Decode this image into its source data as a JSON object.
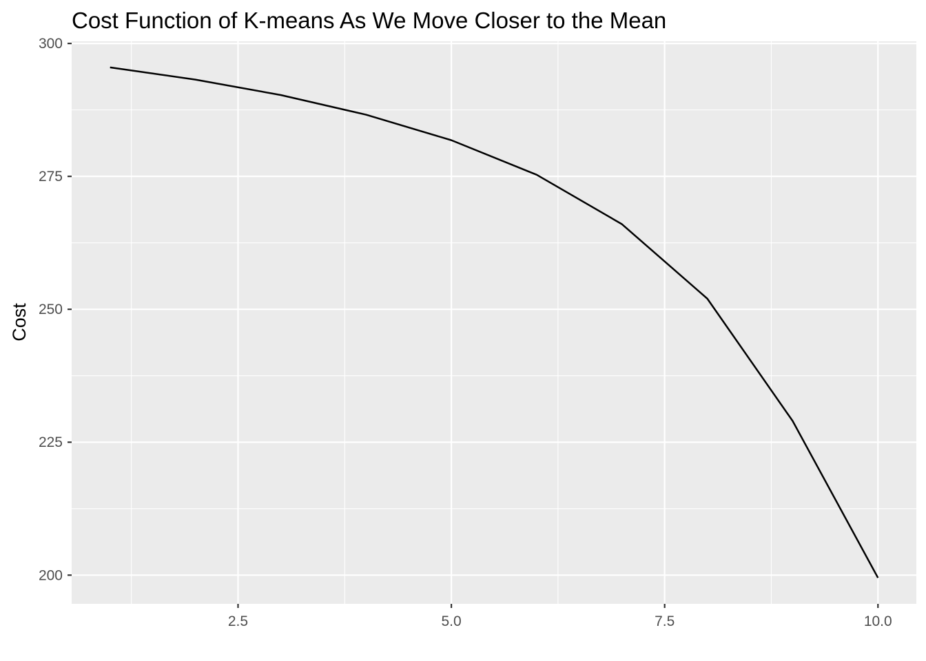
{
  "chart_data": {
    "type": "line",
    "title": "Cost Function of K-means As We Move Closer to the Mean",
    "xlabel": "",
    "ylabel": "Cost",
    "x": [
      1,
      2,
      3,
      4,
      5,
      6,
      7,
      8,
      9,
      10
    ],
    "series": [
      {
        "values": [
          295.5,
          293.2,
          290.3,
          286.6,
          281.8,
          275.3,
          266.0,
          252.0,
          229.0,
          199.5
        ]
      }
    ],
    "xlim": [
      0.55,
      10.45
    ],
    "ylim": [
      194.6,
      300.4
    ],
    "x_ticks": [
      2.5,
      5.0,
      7.5,
      10.0
    ],
    "x_tick_labels": [
      "2.5",
      "5.0",
      "7.5",
      "10.0"
    ],
    "y_ticks": [
      200,
      225,
      250,
      275,
      300
    ],
    "y_tick_labels": [
      "200",
      "225",
      "250",
      "275",
      "300"
    ],
    "grid": true,
    "legend": "none",
    "colors": {
      "panel_background": "#ebebeb",
      "grid": "#ffffff",
      "line": "#000000",
      "tick_label": "#4d4d4d"
    }
  }
}
